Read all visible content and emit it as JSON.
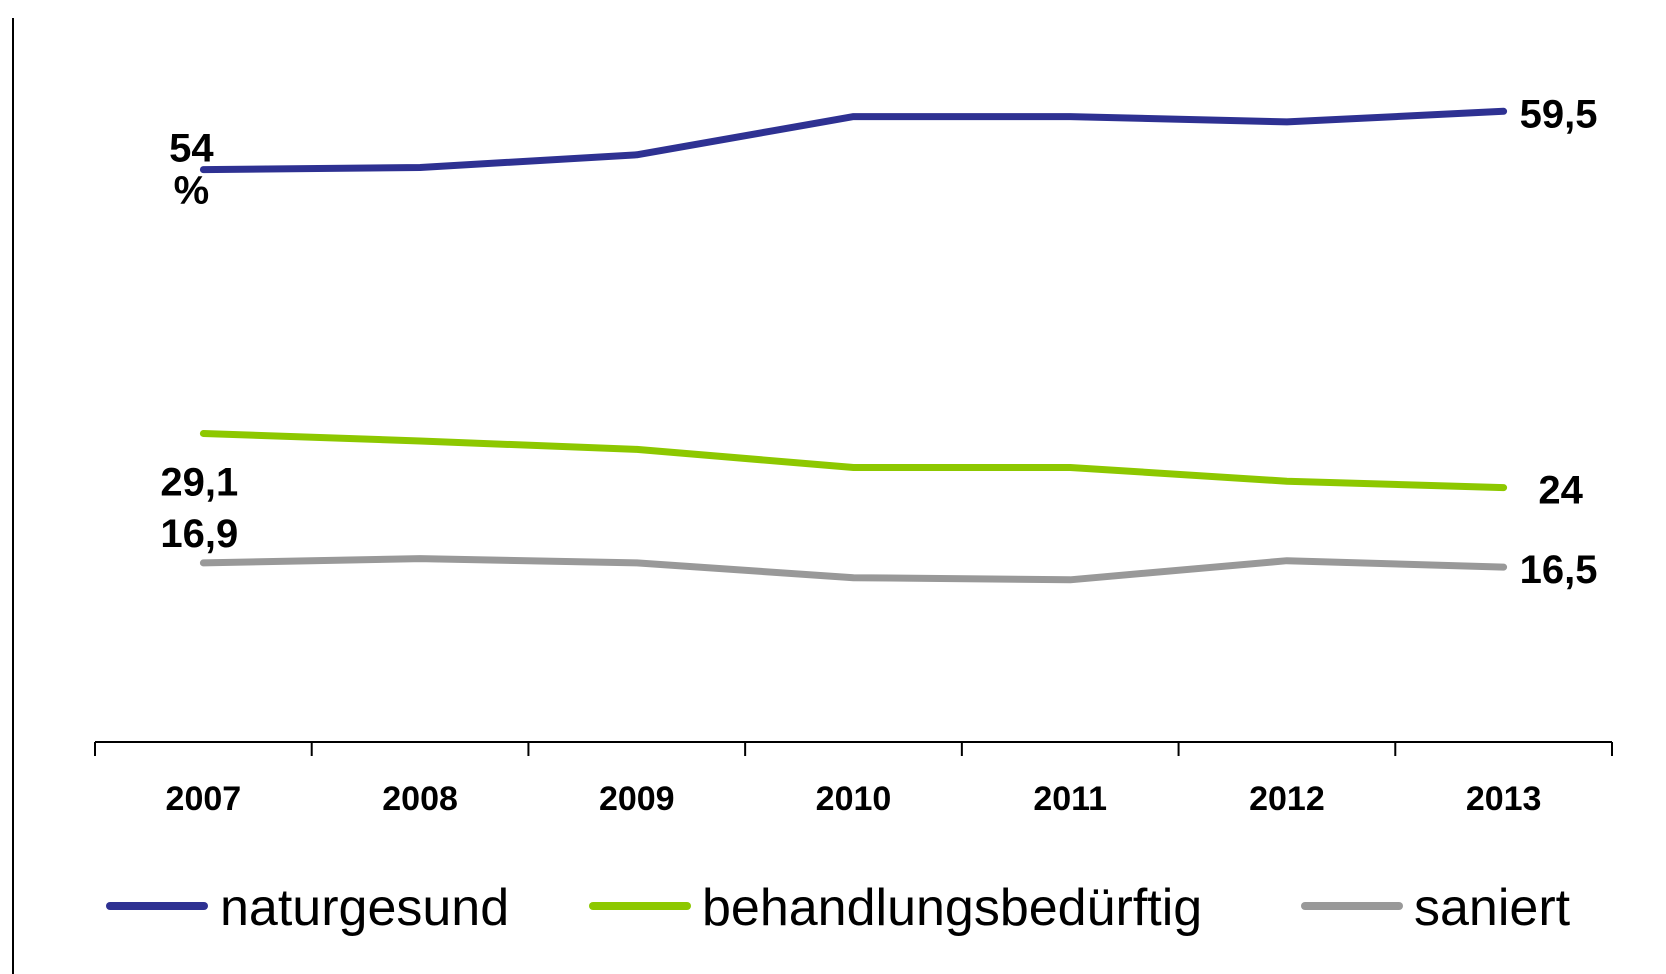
{
  "chart_data": {
    "type": "line",
    "title": "",
    "xlabel": "",
    "ylabel": "",
    "categories": [
      "2007",
      "2008",
      "2009",
      "2010",
      "2011",
      "2012",
      "2013"
    ],
    "ylim": [
      0,
      70
    ],
    "grid": false,
    "legend_position": "bottom",
    "series": [
      {
        "name": "naturgesund",
        "color": "#2E3192",
        "values": [
          54,
          54.2,
          55.4,
          59.0,
          59.0,
          58.5,
          59.5
        ],
        "start_label_line1": "54",
        "start_label_line2": "%",
        "end_label": "59,5"
      },
      {
        "name": "behandlungsbedürftig",
        "color": "#8DC800",
        "values": [
          29.1,
          28.4,
          27.6,
          25.9,
          25.9,
          24.6,
          24.0
        ],
        "start_label": "29,1",
        "end_label": "24"
      },
      {
        "name": "saniert",
        "color": "#999999",
        "values": [
          16.9,
          17.3,
          16.9,
          15.5,
          15.3,
          17.1,
          16.5
        ],
        "start_label": "16,9",
        "end_label": "16,5"
      }
    ]
  }
}
